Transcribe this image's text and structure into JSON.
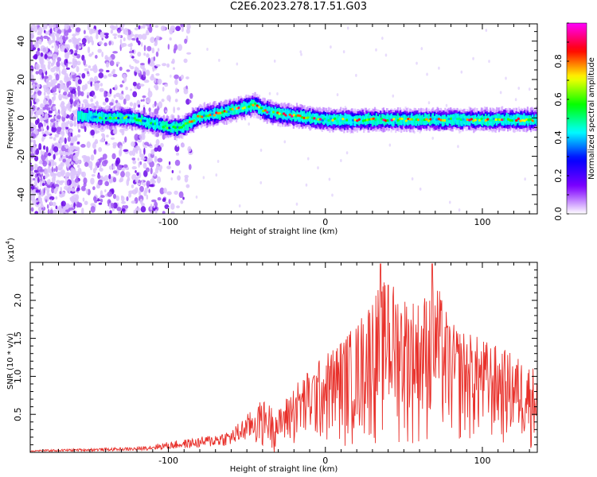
{
  "page_title": "C2E6.2023.278.17.51.G03",
  "chart_data": [
    {
      "type": "heatmap",
      "title": "C2E6.2023.278.17.51.G03",
      "xlabel": "Height of straight line (km)",
      "ylabel": "Frequency (Hz)",
      "xlim": [
        -188,
        135
      ],
      "ylim": [
        -50,
        49
      ],
      "x_ticks": [
        -100,
        0,
        100
      ],
      "y_ticks": [
        -40,
        -20,
        0,
        20,
        40
      ],
      "colorbar": {
        "label": "Normalized spectral amplitude",
        "range": [
          0,
          1
        ],
        "ticks": [
          "0.0",
          "0.2",
          "0.4",
          "0.6",
          "0.8"
        ],
        "colormap": [
          "#ff00ff",
          "#ff0000",
          "#ffff00",
          "#00ff00",
          "#00ffff",
          "#0000ff",
          "#7f00ff",
          "#ffffff"
        ]
      },
      "ridge": {
        "x": [
          -155,
          -140,
          -125,
          -110,
          -100,
          -92,
          -80,
          -70,
          -60,
          -50,
          -45,
          -40,
          -30,
          -20,
          -10,
          0,
          20,
          50,
          80,
          110,
          135
        ],
        "y": [
          1,
          0,
          0,
          -3,
          -5,
          -5,
          1,
          2,
          4,
          6,
          7,
          4,
          2,
          1,
          0,
          -1,
          -1,
          -1,
          -1,
          -1,
          -1
        ]
      }
    },
    {
      "type": "line",
      "xlabel": "Height of straight line (km)",
      "ylabel": "SNR (10 * v/v)",
      "y_multiplier": "(x10",
      "y_multiplier_exp": "4",
      "y_multiplier_close": ")",
      "xlim": [
        -188,
        135
      ],
      "ylim": [
        0,
        25000
      ],
      "x_ticks": [
        -100,
        0,
        100
      ],
      "y_ticks": [
        "0.5",
        "1.0",
        "1.5",
        "2.0"
      ],
      "color": "#e8302a",
      "envelope": {
        "x": [
          -188,
          -120,
          -100,
          -80,
          -60,
          -45,
          -40,
          -30,
          -20,
          -10,
          0,
          20,
          30,
          40,
          50,
          60,
          70,
          80,
          100,
          120,
          135
        ],
        "y": [
          300,
          700,
          1400,
          2000,
          3000,
          6000,
          7000,
          5500,
          9000,
          11000,
          13000,
          17000,
          21000,
          23000,
          21000,
          20000,
          23000,
          17000,
          15000,
          13000,
          11000
        ]
      },
      "peaks": [
        {
          "x": 35,
          "y": 24800
        },
        {
          "x": 68,
          "y": 24800
        },
        {
          "x": 40,
          "y": 22000
        }
      ]
    }
  ]
}
